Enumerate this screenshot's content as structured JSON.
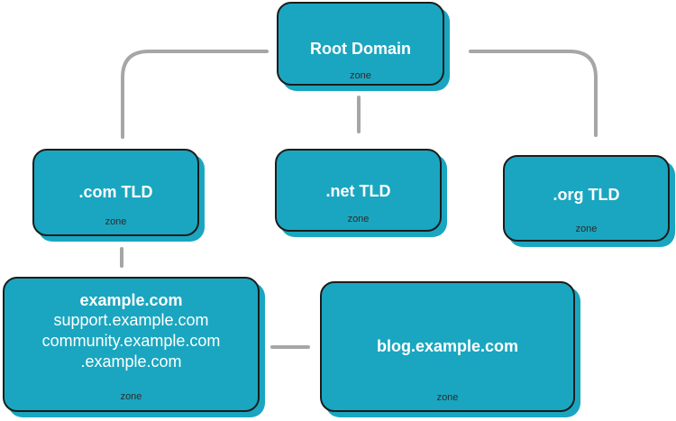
{
  "diagram": {
    "root": {
      "title": "Root Domain",
      "zone": "zone"
    },
    "tlds": [
      {
        "title": ".com TLD",
        "zone": "zone"
      },
      {
        "title": ".net TLD",
        "zone": "zone"
      },
      {
        "title": ".org TLD",
        "zone": "zone"
      }
    ],
    "example_zone": {
      "title": "example.com",
      "lines": [
        "support.example.com",
        "community.example.com",
        ".example.com"
      ],
      "zone": "zone"
    },
    "blog_zone": {
      "title": "blog.example.com",
      "zone": "zone"
    }
  },
  "colors": {
    "node_fill": "#1aa6c0",
    "node_border": "#1c1c1c",
    "connector": "#a6a6a6"
  }
}
